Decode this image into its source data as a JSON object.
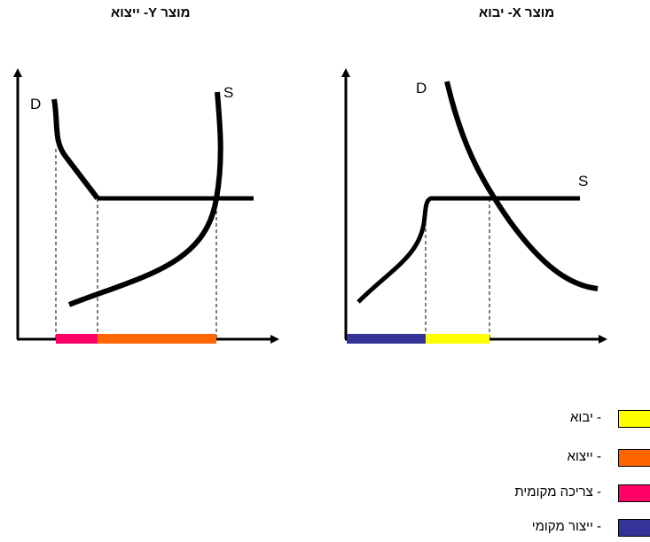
{
  "panels": {
    "left": {
      "title": "מוצר Y- ייצוא",
      "demand_label": "D",
      "supply_label": "S"
    },
    "right": {
      "title": "מוצר X- יבוא",
      "demand_label": "D",
      "supply_label": "S"
    }
  },
  "colors": {
    "import": "#ffff00",
    "export": "#ff6600",
    "domestic_consumption": "#ff0066",
    "domestic_production": "#333399"
  },
  "legend": [
    {
      "label": "- יבוא",
      "color": "#ffff00"
    },
    {
      "label": "- ייצוא",
      "color": "#ff6600"
    },
    {
      "label": "- צריכה מקומית",
      "color": "#ff0066"
    },
    {
      "label": "- ייצור מקומי",
      "color": "#333399"
    }
  ]
}
